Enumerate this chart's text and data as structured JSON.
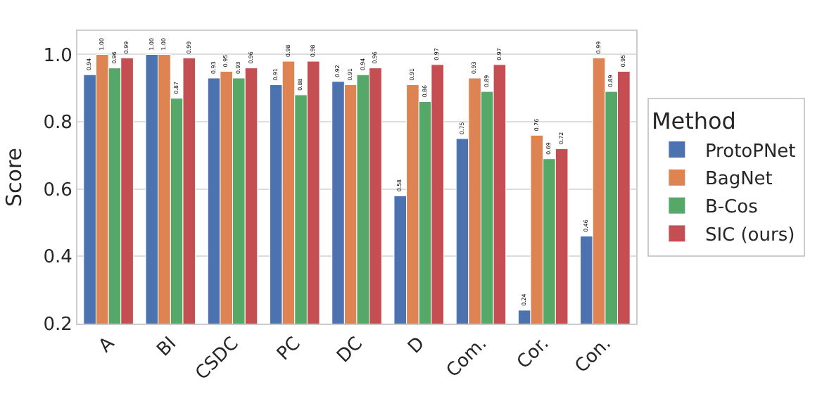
{
  "chart_data": {
    "type": "bar",
    "ylabel": "Score",
    "legend_title": "Method",
    "categories": [
      "A",
      "BI",
      "CSDC",
      "PC",
      "DC",
      "D",
      "Com.",
      "Cor.",
      "Con."
    ],
    "series": [
      {
        "name": "ProtoPNet",
        "color": "#4c72b0",
        "values": [
          0.94,
          1.0,
          0.93,
          0.91,
          0.92,
          0.58,
          0.75,
          0.24,
          0.46
        ],
        "value_labels": [
          "0.94",
          "1.00",
          "0.93",
          "0.91",
          "0.92",
          "0.58",
          "0.75",
          "0.24",
          "0.46"
        ]
      },
      {
        "name": "BagNet",
        "color": "#dd8452",
        "values": [
          1.0,
          1.0,
          0.95,
          0.98,
          0.91,
          0.91,
          0.93,
          0.76,
          0.99
        ],
        "value_labels": [
          "1.00",
          "1.00",
          "0.95",
          "0.98",
          "0.91",
          "0.91",
          "0.93",
          "0.76",
          "0.99"
        ]
      },
      {
        "name": "B-Cos",
        "color": "#55a868",
        "values": [
          0.96,
          0.87,
          0.93,
          0.88,
          0.94,
          0.86,
          0.89,
          0.69,
          0.89
        ],
        "value_labels": [
          "0.96",
          "0.87",
          "0.93",
          "0.88",
          "0.94",
          "0.86",
          "0.89",
          "0.69",
          "0.89"
        ]
      },
      {
        "name": "SIC (ours)",
        "color": "#c44e52",
        "values": [
          0.99,
          0.99,
          0.96,
          0.98,
          0.96,
          0.97,
          0.97,
          0.72,
          0.95
        ],
        "value_labels": [
          "0.99",
          "0.99",
          "0.96",
          "0.98",
          "0.96",
          "0.97",
          "0.97",
          "0.72",
          "0.95"
        ]
      }
    ],
    "ylim": [
      0.2,
      1.07
    ],
    "yticks": [
      {
        "value": 0.2,
        "label": "0.2"
      },
      {
        "value": 0.4,
        "label": "0.4"
      },
      {
        "value": 0.6,
        "label": "0.6"
      },
      {
        "value": 0.8,
        "label": "0.8"
      },
      {
        "value": 1.0,
        "label": "1.0"
      }
    ],
    "grid": "y",
    "legend": "right"
  }
}
